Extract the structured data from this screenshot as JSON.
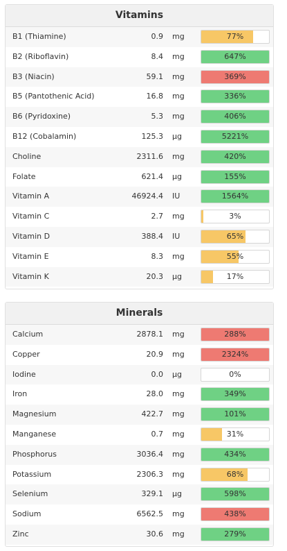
{
  "colors": {
    "yellow": "#f7c766",
    "green": "#6fd184",
    "red": "#ee7a72"
  },
  "vitamins": {
    "title": "Vitamins",
    "rows": [
      {
        "name": "B1 (Thiamine)",
        "amount": "0.9",
        "unit": "mg",
        "pct_label": "77%",
        "fill": 0.77,
        "color": "yellow"
      },
      {
        "name": "B2 (Riboflavin)",
        "amount": "8.4",
        "unit": "mg",
        "pct_label": "647%",
        "fill": 1.0,
        "color": "green"
      },
      {
        "name": "B3 (Niacin)",
        "amount": "59.1",
        "unit": "mg",
        "pct_label": "369%",
        "fill": 1.0,
        "color": "red"
      },
      {
        "name": "B5 (Pantothenic Acid)",
        "amount": "16.8",
        "unit": "mg",
        "pct_label": "336%",
        "fill": 1.0,
        "color": "green"
      },
      {
        "name": "B6 (Pyridoxine)",
        "amount": "5.3",
        "unit": "mg",
        "pct_label": "406%",
        "fill": 1.0,
        "color": "green"
      },
      {
        "name": "B12 (Cobalamin)",
        "amount": "125.3",
        "unit": "µg",
        "pct_label": "5221%",
        "fill": 1.0,
        "color": "green"
      },
      {
        "name": "Choline",
        "amount": "2311.6",
        "unit": "mg",
        "pct_label": "420%",
        "fill": 1.0,
        "color": "green"
      },
      {
        "name": "Folate",
        "amount": "621.4",
        "unit": "µg",
        "pct_label": "155%",
        "fill": 1.0,
        "color": "green"
      },
      {
        "name": "Vitamin A",
        "amount": "46924.4",
        "unit": "IU",
        "pct_label": "1564%",
        "fill": 1.0,
        "color": "green"
      },
      {
        "name": "Vitamin C",
        "amount": "2.7",
        "unit": "mg",
        "pct_label": "3%",
        "fill": 0.03,
        "color": "yellow"
      },
      {
        "name": "Vitamin D",
        "amount": "388.4",
        "unit": "IU",
        "pct_label": "65%",
        "fill": 0.65,
        "color": "yellow"
      },
      {
        "name": "Vitamin E",
        "amount": "8.3",
        "unit": "mg",
        "pct_label": "55%",
        "fill": 0.55,
        "color": "yellow"
      },
      {
        "name": "Vitamin K",
        "amount": "20.3",
        "unit": "µg",
        "pct_label": "17%",
        "fill": 0.17,
        "color": "yellow"
      }
    ]
  },
  "minerals": {
    "title": "Minerals",
    "rows": [
      {
        "name": "Calcium",
        "amount": "2878.1",
        "unit": "mg",
        "pct_label": "288%",
        "fill": 1.0,
        "color": "red"
      },
      {
        "name": "Copper",
        "amount": "20.9",
        "unit": "mg",
        "pct_label": "2324%",
        "fill": 1.0,
        "color": "red"
      },
      {
        "name": "Iodine",
        "amount": "0.0",
        "unit": "µg",
        "pct_label": "0%",
        "fill": 0.0,
        "color": "yellow"
      },
      {
        "name": "Iron",
        "amount": "28.0",
        "unit": "mg",
        "pct_label": "349%",
        "fill": 1.0,
        "color": "green"
      },
      {
        "name": "Magnesium",
        "amount": "422.7",
        "unit": "mg",
        "pct_label": "101%",
        "fill": 1.0,
        "color": "green"
      },
      {
        "name": "Manganese",
        "amount": "0.7",
        "unit": "mg",
        "pct_label": "31%",
        "fill": 0.31,
        "color": "yellow"
      },
      {
        "name": "Phosphorus",
        "amount": "3036.4",
        "unit": "mg",
        "pct_label": "434%",
        "fill": 1.0,
        "color": "green"
      },
      {
        "name": "Potassium",
        "amount": "2306.3",
        "unit": "mg",
        "pct_label": "68%",
        "fill": 0.68,
        "color": "yellow"
      },
      {
        "name": "Selenium",
        "amount": "329.1",
        "unit": "µg",
        "pct_label": "598%",
        "fill": 1.0,
        "color": "green"
      },
      {
        "name": "Sodium",
        "amount": "6562.5",
        "unit": "mg",
        "pct_label": "438%",
        "fill": 1.0,
        "color": "red"
      },
      {
        "name": "Zinc",
        "amount": "30.6",
        "unit": "mg",
        "pct_label": "279%",
        "fill": 1.0,
        "color": "green"
      }
    ]
  }
}
